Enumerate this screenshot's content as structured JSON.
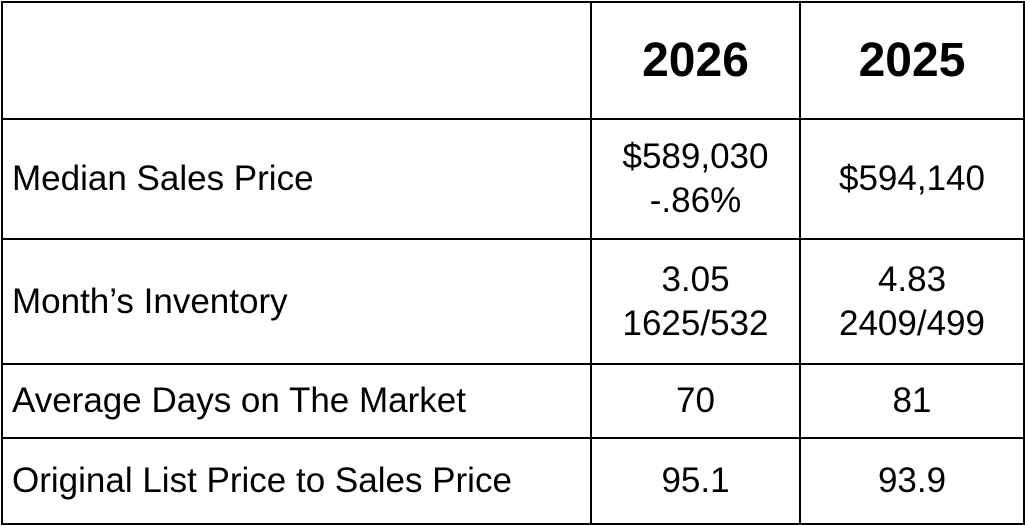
{
  "table": {
    "columns": [
      "2026",
      "2025"
    ],
    "rows": [
      {
        "label": "Median Sales Price",
        "cells": [
          [
            "$589,030",
            "-.86%"
          ],
          [
            "$594,140"
          ]
        ]
      },
      {
        "label": "Month’s Inventory",
        "cells": [
          [
            "3.05",
            "1625/532"
          ],
          [
            "4.83",
            "2409/499"
          ]
        ]
      },
      {
        "label": "Average Days on The Market",
        "cells": [
          [
            "70"
          ],
          [
            "81"
          ]
        ]
      },
      {
        "label": "Original List Price to Sales Price",
        "cells": [
          [
            "95.1"
          ],
          [
            "93.9"
          ]
        ]
      }
    ]
  }
}
